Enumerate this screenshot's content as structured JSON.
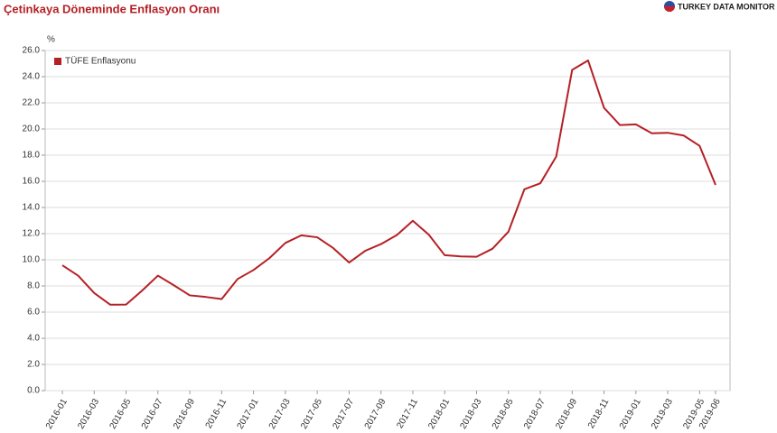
{
  "chart_data": {
    "type": "line",
    "title": "Çetinkaya Döneminde Enflasyon Oranı",
    "logo": "TURKEY DATA MONITOR",
    "ylabel": "%",
    "categories": [
      "2016-01",
      null,
      "2016-03",
      null,
      "2016-05",
      null,
      "2016-07",
      null,
      "2016-09",
      null,
      "2016-11",
      null,
      "2017-01",
      null,
      "2017-03",
      null,
      "2017-05",
      null,
      "2017-07",
      null,
      "2017-09",
      null,
      "2017-11",
      null,
      "2018-01",
      null,
      "2018-03",
      null,
      "2018-05",
      null,
      "2018-07",
      null,
      "2018-09",
      null,
      "2018-11",
      null,
      "2019-01",
      null,
      "2019-03",
      null,
      "2019-05",
      "2019-06"
    ],
    "series": [
      {
        "name": "TÜFE Enflasyonu",
        "color": "#b52025",
        "values": [
          9.58,
          8.78,
          7.46,
          6.57,
          6.58,
          7.64,
          8.79,
          8.05,
          7.28,
          7.16,
          7.0,
          8.53,
          9.22,
          10.13,
          11.29,
          11.87,
          11.72,
          10.9,
          9.79,
          10.68,
          11.2,
          11.9,
          12.98,
          11.92,
          10.35,
          10.26,
          10.23,
          10.85,
          12.15,
          15.39,
          15.85,
          17.9,
          24.52,
          25.24,
          21.62,
          20.3,
          20.35,
          19.67,
          19.71,
          19.5,
          18.71,
          15.72
        ]
      }
    ],
    "ylim": [
      0,
      26
    ],
    "yticks": [
      {
        "value": 0,
        "label": "0.0"
      },
      {
        "value": 2,
        "label": "2.0"
      },
      {
        "value": 4,
        "label": "4.0"
      },
      {
        "value": 6,
        "label": "6.0"
      },
      {
        "value": 8,
        "label": "8.0"
      },
      {
        "value": 10,
        "label": "10.0"
      },
      {
        "value": 12,
        "label": "12.0"
      },
      {
        "value": 14,
        "label": "14.0"
      },
      {
        "value": 16,
        "label": "16.0"
      },
      {
        "value": 18,
        "label": "18.0"
      },
      {
        "value": 20,
        "label": "20.0"
      },
      {
        "value": 22,
        "label": "22.0"
      },
      {
        "value": 24,
        "label": "24.0"
      },
      {
        "value": 26,
        "label": "26.0"
      }
    ],
    "grid": true,
    "legend": "top-left"
  }
}
